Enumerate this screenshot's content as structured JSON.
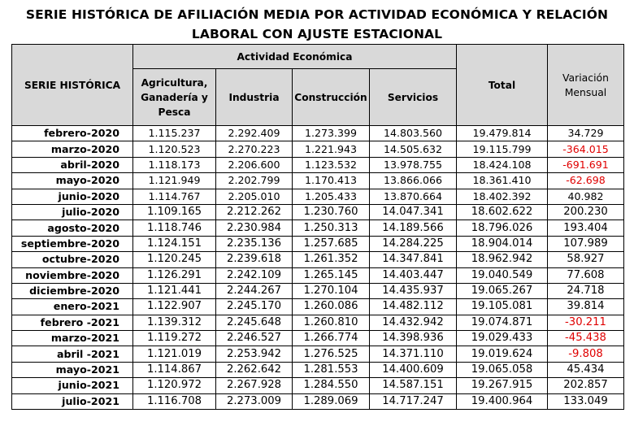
{
  "title": {
    "line1": "SERIE HISTÓRICA DE AFILIACIÓN MEDIA POR ACTIVIDAD ECONÓMICA Y RELACIÓN",
    "line2": "LABORAL CON AJUSTE ESTACIONAL"
  },
  "headers": {
    "serie": "SERIE HISTÓRICA",
    "actividad": "Actividad Económica",
    "agri_line1": "Agricultura,",
    "agri_line2": "Ganadería y",
    "agri_line3": "Pesca",
    "industria": "Industria",
    "construccion": "Construcción",
    "servicios": "Servicios",
    "total": "Total",
    "variacion_line1": "Variación",
    "variacion_line2": "Mensual"
  },
  "colors": {
    "header_bg": "#d9d9d9",
    "negative": "#e00000"
  },
  "rows": [
    {
      "serie": "febrero-2020",
      "agri": "1.115.237",
      "ind": "2.292.409",
      "cons": "1.273.399",
      "serv": "14.803.560",
      "total": "19.479.814",
      "var": "34.729",
      "neg": false
    },
    {
      "serie": "marzo-2020",
      "agri": "1.120.523",
      "ind": "2.270.223",
      "cons": "1.221.943",
      "serv": "14.505.632",
      "total": "19.115.799",
      "var": "-364.015",
      "neg": true
    },
    {
      "serie": "abril-2020",
      "agri": "1.118.173",
      "ind": "2.206.600",
      "cons": "1.123.532",
      "serv": "13.978.755",
      "total": "18.424.108",
      "var": "-691.691",
      "neg": true
    },
    {
      "serie": "mayo-2020",
      "agri": "1.121.949",
      "ind": "2.202.799",
      "cons": "1.170.413",
      "serv": "13.866.066",
      "total": "18.361.410",
      "var": "-62.698",
      "neg": true
    },
    {
      "serie": "junio-2020",
      "agri": "1.114.767",
      "ind": "2.205.010",
      "cons": "1.205.433",
      "serv": "13.870.664",
      "total": "18.402.392",
      "var": "40.982",
      "neg": false
    },
    {
      "serie": "julio-2020",
      "agri": "1.109.165",
      "ind": "2.212.262",
      "cons": "1.230.760",
      "serv": "14.047.341",
      "total": "18.602.622",
      "var": "200.230",
      "neg": false
    },
    {
      "serie": "agosto-2020",
      "agri": "1.118.746",
      "ind": "2.230.984",
      "cons": "1.250.313",
      "serv": "14.189.566",
      "total": "18.796.026",
      "var": "193.404",
      "neg": false
    },
    {
      "serie": "septiembre-2020",
      "agri": "1.124.151",
      "ind": "2.235.136",
      "cons": "1.257.685",
      "serv": "14.284.225",
      "total": "18.904.014",
      "var": "107.989",
      "neg": false
    },
    {
      "serie": "octubre-2020",
      "agri": "1.120.245",
      "ind": "2.239.618",
      "cons": "1.261.352",
      "serv": "14.347.841",
      "total": "18.962.942",
      "var": "58.927",
      "neg": false
    },
    {
      "serie": "noviembre-2020",
      "agri": "1.126.291",
      "ind": "2.242.109",
      "cons": "1.265.145",
      "serv": "14.403.447",
      "total": "19.040.549",
      "var": "77.608",
      "neg": false
    },
    {
      "serie": "diciembre-2020",
      "agri": "1.121.441",
      "ind": "2.244.267",
      "cons": "1.270.104",
      "serv": "14.435.937",
      "total": "19.065.267",
      "var": "24.718",
      "neg": false
    },
    {
      "serie": "enero-2021",
      "agri": "1.122.907",
      "ind": "2.245.170",
      "cons": "1.260.086",
      "serv": "14.482.112",
      "total": "19.105.081",
      "var": "39.814",
      "neg": false
    },
    {
      "serie": "febrero -2021",
      "agri": "1.139.312",
      "ind": "2.245.648",
      "cons": "1.260.810",
      "serv": "14.432.942",
      "total": "19.074.871",
      "var": "-30.211",
      "neg": true
    },
    {
      "serie": "marzo-2021",
      "agri": "1.119.272",
      "ind": "2.246.527",
      "cons": "1.266.774",
      "serv": "14.398.936",
      "total": "19.029.433",
      "var": "-45.438",
      "neg": true
    },
    {
      "serie": "abril -2021",
      "agri": "1.121.019",
      "ind": "2.253.942",
      "cons": "1.276.525",
      "serv": "14.371.110",
      "total": "19.019.624",
      "var": "-9.808",
      "neg": true
    },
    {
      "serie": "mayo-2021",
      "agri": "1.114.867",
      "ind": "2.262.642",
      "cons": "1.281.553",
      "serv": "14.400.609",
      "total": "19.065.058",
      "var": "45.434",
      "neg": false
    },
    {
      "serie": "junio-2021",
      "agri": "1.120.972",
      "ind": "2.267.928",
      "cons": "1.284.550",
      "serv": "14.587.151",
      "total": "19.267.915",
      "var": "202.857",
      "neg": false
    },
    {
      "serie": "julio-2021",
      "agri": "1.116.708",
      "ind": "2.273.009",
      "cons": "1.289.069",
      "serv": "14.717.247",
      "total": "19.400.964",
      "var": "133.049",
      "neg": false
    }
  ]
}
